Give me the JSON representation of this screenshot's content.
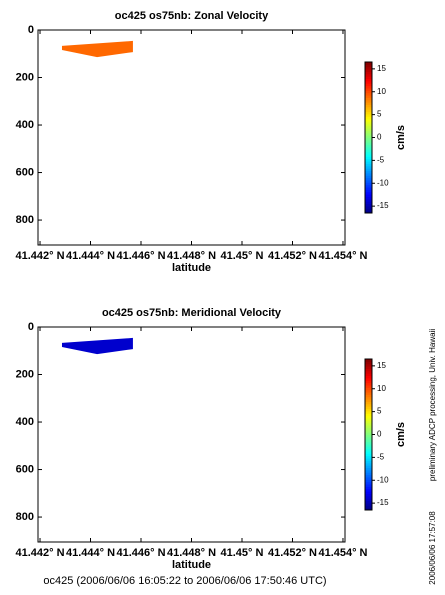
{
  "chart_data": [
    {
      "type": "section",
      "title": "oc425 os75nb: Zonal Velocity",
      "xlabel": "latitude",
      "xlim": [
        41.44192,
        41.45408
      ],
      "xticks": [
        {
          "value": 41.442,
          "label": "41.442° N"
        },
        {
          "value": 41.444,
          "label": "41.444° N"
        },
        {
          "value": 41.446,
          "label": "41.446° N"
        },
        {
          "value": 41.448,
          "label": "41.448° N"
        },
        {
          "value": 41.45,
          "label": "41.45° N"
        },
        {
          "value": 41.452,
          "label": "41.452° N"
        },
        {
          "value": 41.454,
          "label": "41.454° N"
        }
      ],
      "ylim": [
        0,
        905
      ],
      "yticks": [
        0,
        200,
        400,
        600,
        800
      ],
      "polygon": {
        "x": [
          41.44287,
          41.44568,
          41.44568,
          41.44426,
          41.44287
        ],
        "y": [
          67,
          46,
          93,
          114,
          84
        ],
        "value": 9
      },
      "colorbar": {
        "label": "cm/s",
        "clim": [
          -16.5,
          16.5
        ],
        "ticks": [
          -15,
          -10,
          -5,
          0,
          5,
          10,
          15
        ]
      }
    },
    {
      "type": "section",
      "title": "oc425 os75nb: Meridional Velocity",
      "xlabel": "latitude",
      "xlim": [
        41.44192,
        41.45408
      ],
      "xticks": [
        {
          "value": 41.442,
          "label": "41.442° N"
        },
        {
          "value": 41.444,
          "label": "41.444° N"
        },
        {
          "value": 41.446,
          "label": "41.446° N"
        },
        {
          "value": 41.448,
          "label": "41.448° N"
        },
        {
          "value": 41.45,
          "label": "41.45° N"
        },
        {
          "value": 41.452,
          "label": "41.452° N"
        },
        {
          "value": 41.454,
          "label": "41.454° N"
        }
      ],
      "ylim": [
        0,
        905
      ],
      "yticks": [
        0,
        200,
        400,
        600,
        800
      ],
      "polygon": {
        "x": [
          41.44287,
          41.44568,
          41.44568,
          41.44426,
          41.44287
        ],
        "y": [
          67,
          46,
          93,
          114,
          84
        ],
        "value": -14
      },
      "colorbar": {
        "label": "cm/s",
        "clim": [
          -16.5,
          16.5
        ],
        "ticks": [
          -15,
          -10,
          -5,
          0,
          5,
          10,
          15
        ]
      }
    }
  ],
  "footer": "oc425 (2006/06/06 16:05:22 to 2006/06/06 17:50:46 UTC)",
  "side_note": "preliminary ADCP processing,  Univ. Hawaii",
  "side_date": "2006/06/06 17:57:08"
}
